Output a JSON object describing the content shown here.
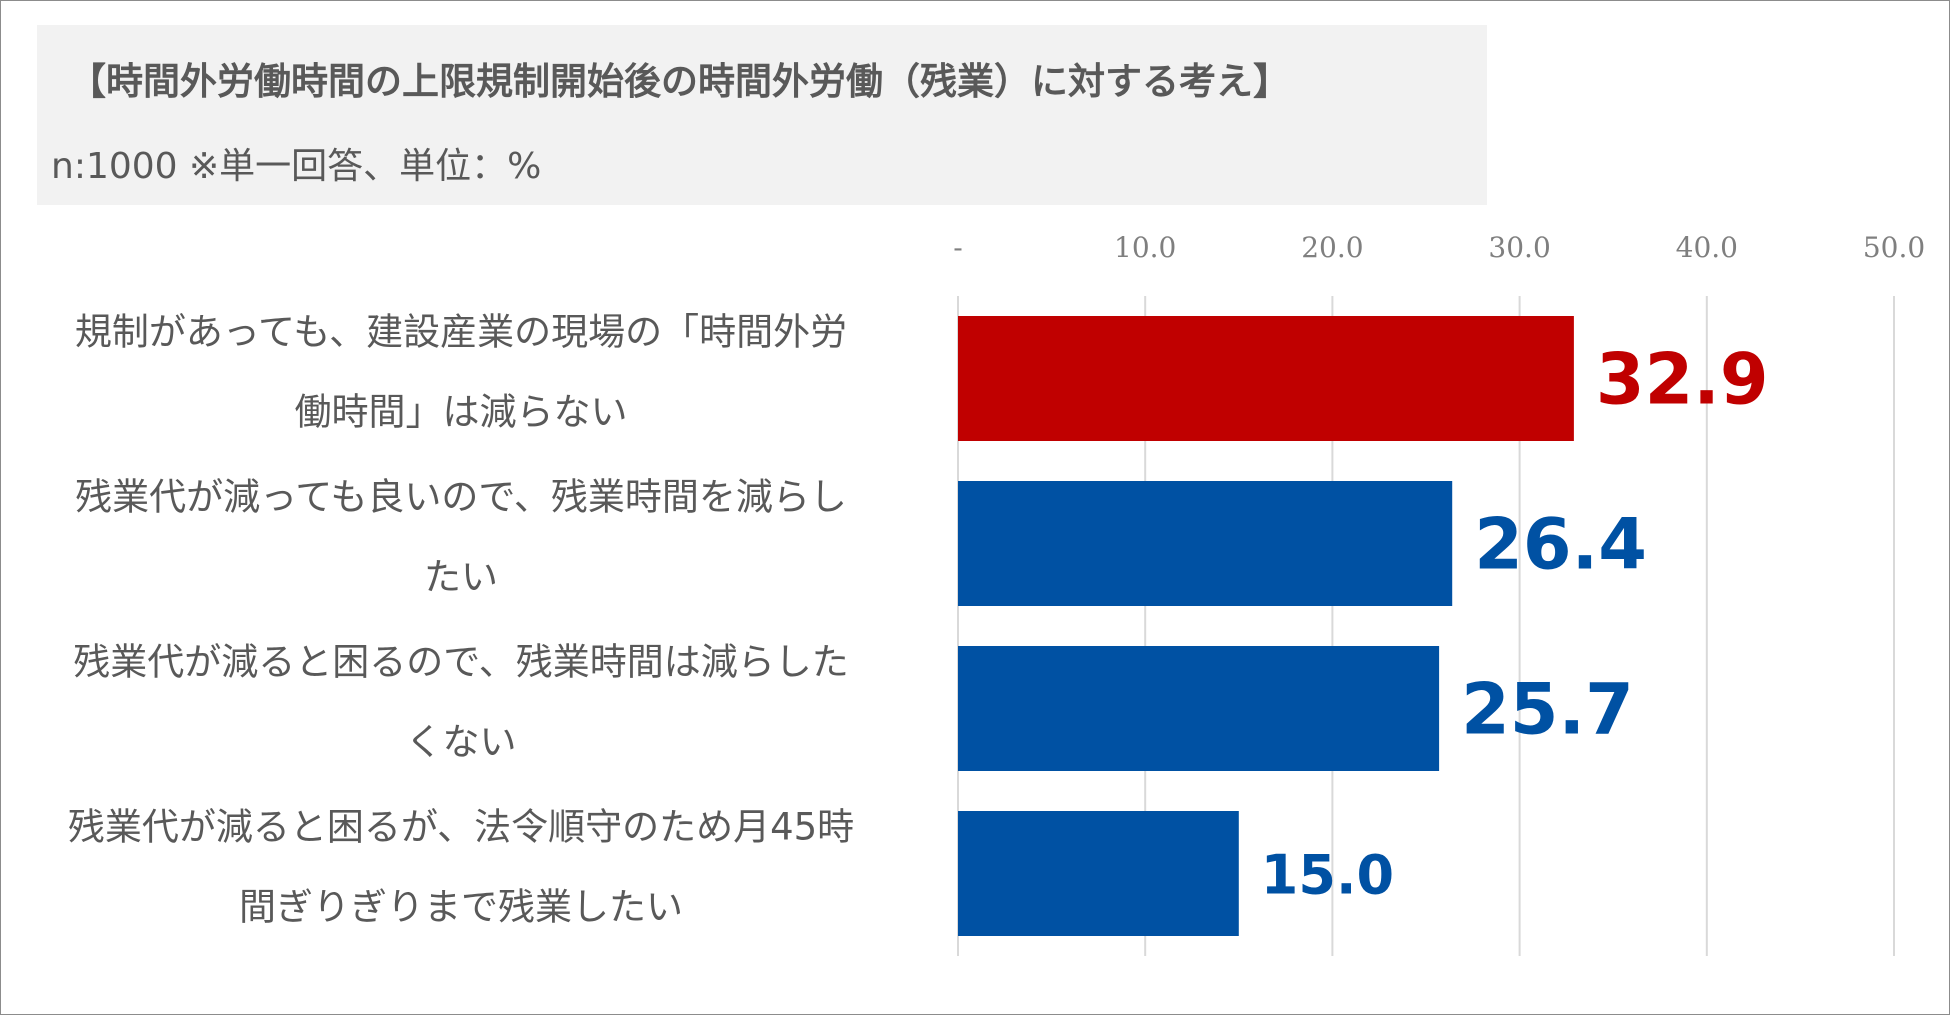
{
  "title": "【時間外労働時間の上限規制開始後の時間外労働（残業）に対する考え】",
  "subtitle": "n:1000 ※単一回答、単位：%",
  "colors": {
    "highlight": "#c00000",
    "primary": "#0051a3",
    "grid": "#d9d9d9",
    "text": "#595959"
  },
  "chart_data": {
    "type": "bar",
    "orientation": "horizontal",
    "title": "【時間外労働時間の上限規制開始後の時間外労働（残業）に対する考え】",
    "xlim": [
      0,
      50
    ],
    "ticks": [
      "-",
      "10.0",
      "20.0",
      "30.0",
      "40.0",
      "50.0"
    ],
    "tick_values": [
      0,
      10,
      20,
      30,
      40,
      50
    ],
    "grid": true,
    "categories": [
      [
        "規制があっても、建設産業の現場の「時間外労",
        "働時間」は減らない"
      ],
      [
        "残業代が減っても良いので、残業時間を減らし",
        "たい"
      ],
      [
        "残業代が減ると困るので、残業時間は減らした",
        "くない"
      ],
      [
        "残業代が減ると困るが、法令順守のため月45時",
        "間ぎりぎりまで残業したい"
      ]
    ],
    "values": [
      32.9,
      26.4,
      25.7,
      15.0
    ],
    "labels": [
      "32.9",
      "26.4",
      "25.7",
      "15.0"
    ],
    "bar_colors": [
      "#c00000",
      "#0051a3",
      "#0051a3",
      "#0051a3"
    ]
  }
}
